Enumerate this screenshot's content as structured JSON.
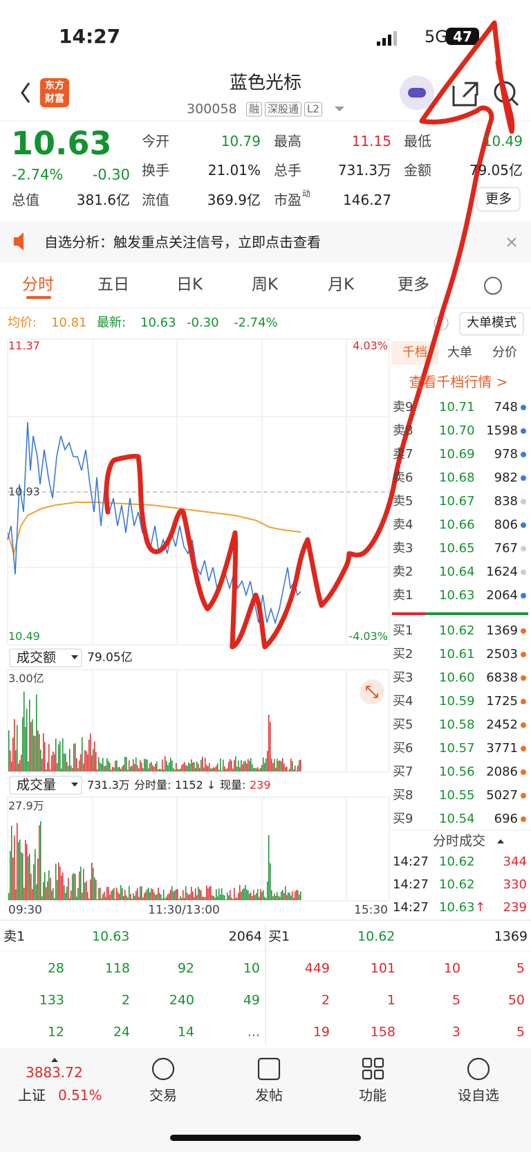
{
  "status_bar": {
    "time": "14:27",
    "network": "5G",
    "battery": "47"
  },
  "header": {
    "logo": [
      "东方",
      "财富"
    ],
    "title": "蓝色光标",
    "code": "300058",
    "tags": [
      "融",
      "深股通",
      "L2"
    ]
  },
  "quote": {
    "price": "10.63",
    "change_pct": "-2.74%",
    "change": "-0.30",
    "fields": [
      {
        "label": "今开",
        "value": "10.79",
        "color": "green"
      },
      {
        "label": "最高",
        "value": "11.15",
        "color": "red"
      },
      {
        "label": "最低",
        "value": "10.49",
        "color": "green"
      },
      {
        "label": "换手",
        "value": "21.01%",
        "color": "dark"
      },
      {
        "label": "总手",
        "value": "731.3万",
        "color": "dark"
      },
      {
        "label": "金额",
        "value": "79.05亿",
        "color": "dark"
      },
      {
        "label": "总值",
        "value": "381.6亿",
        "color": "dark"
      },
      {
        "label": "流值",
        "value": "369.9亿",
        "color": "dark"
      },
      {
        "label": "市盈",
        "sup": "动",
        "value": "146.27",
        "color": "dark"
      }
    ],
    "more": "更多"
  },
  "notice": "自选分析：触发重点关注信号，立即点击查看",
  "tabs": [
    "分时",
    "五日",
    "日K",
    "周K",
    "月K",
    "更多"
  ],
  "chart_info": {
    "avg_label": "均价:",
    "avg": "10.81",
    "last_label": "最新:",
    "last": "10.63",
    "change": "-0.30",
    "change_pct": "-2.74%",
    "mode": "大单模式"
  },
  "price_chart": {
    "high": "11.37",
    "high_pct": "4.03%",
    "mid": "10.93",
    "low": "10.49",
    "low_pct": "-4.03%"
  },
  "amount_panel": {
    "selector": "成交额",
    "total": "79.05亿",
    "max": "3.00亿"
  },
  "volume_panel": {
    "selector": "成交量",
    "total": "731.3万",
    "period_label": "分时量:",
    "period": "1152 ↓",
    "current_label": "现量:",
    "current": "239",
    "max": "27.9万"
  },
  "time_axis": [
    "09:30",
    "11:30/13:00",
    "15:30"
  ],
  "order_book": {
    "tabs": [
      "千档",
      "大单",
      "分价"
    ],
    "link": "查看千档行情 >",
    "sell": [
      {
        "label": "卖9",
        "price": "10.71",
        "volume": "748",
        "dot": "#3a7be0"
      },
      {
        "label": "卖8",
        "price": "10.70",
        "volume": "1598",
        "dot": "#3a7be0"
      },
      {
        "label": "卖7",
        "price": "10.69",
        "volume": "978",
        "dot": "#3a7be0"
      },
      {
        "label": "卖6",
        "price": "10.68",
        "volume": "982",
        "dot": "#3a7be0"
      },
      {
        "label": "卖5",
        "price": "10.67",
        "volume": "838",
        "dot": "#cccccc"
      },
      {
        "label": "卖4",
        "price": "10.66",
        "volume": "806",
        "dot": "#3a7be0"
      },
      {
        "label": "卖3",
        "price": "10.65",
        "volume": "767",
        "dot": "#cccccc"
      },
      {
        "label": "卖2",
        "price": "10.64",
        "volume": "1624",
        "dot": "#cccccc"
      },
      {
        "label": "卖1",
        "price": "10.63",
        "volume": "2064",
        "dot": "#3a7be0"
      }
    ],
    "buy": [
      {
        "label": "买1",
        "price": "10.62",
        "volume": "1369",
        "dot": "#f07020"
      },
      {
        "label": "买2",
        "price": "10.61",
        "volume": "2503",
        "dot": "#f07020"
      },
      {
        "label": "买3",
        "price": "10.60",
        "volume": "6838",
        "dot": "#f07020"
      },
      {
        "label": "买4",
        "price": "10.59",
        "volume": "1725",
        "dot": "#f07020"
      },
      {
        "label": "买5",
        "price": "10.58",
        "volume": "2452",
        "dot": "#f07020"
      },
      {
        "label": "买6",
        "price": "10.57",
        "volume": "3771",
        "dot": "#f07020"
      },
      {
        "label": "买7",
        "price": "10.56",
        "volume": "2086",
        "dot": "#f07020"
      },
      {
        "label": "买8",
        "price": "10.55",
        "volume": "5027",
        "dot": "#f07020"
      },
      {
        "label": "买9",
        "price": "10.54",
        "volume": "696",
        "dot": "#f07020"
      }
    ]
  },
  "trades": {
    "title": "分时成交",
    "rows": [
      {
        "time": "14:27",
        "price": "10.62",
        "volume": "344"
      },
      {
        "time": "14:27",
        "price": "10.62",
        "volume": "330"
      },
      {
        "time": "14:27",
        "price": "10.63",
        "arrow": "↑",
        "volume": "239"
      }
    ]
  },
  "bottom_book": {
    "sell": {
      "label": "卖1",
      "price": "10.63",
      "volume": "2064"
    },
    "buy": {
      "label": "买1",
      "price": "10.62",
      "volume": "1369"
    },
    "sell_queue": [
      [
        "28",
        "118",
        "92",
        "10"
      ],
      [
        "133",
        "2",
        "240",
        "49"
      ],
      [
        "12",
        "24",
        "14",
        "..."
      ]
    ],
    "buy_queue": [
      [
        "449",
        "101",
        "10",
        "5"
      ],
      [
        "2",
        "1",
        "5",
        "50"
      ],
      [
        "19",
        "158",
        "3",
        "5"
      ]
    ]
  },
  "nav": {
    "index_value": "3883.72",
    "index_name": "上证",
    "index_pct": "0.51%",
    "items": [
      "交易",
      "发帖",
      "功能",
      "设自选"
    ]
  }
}
